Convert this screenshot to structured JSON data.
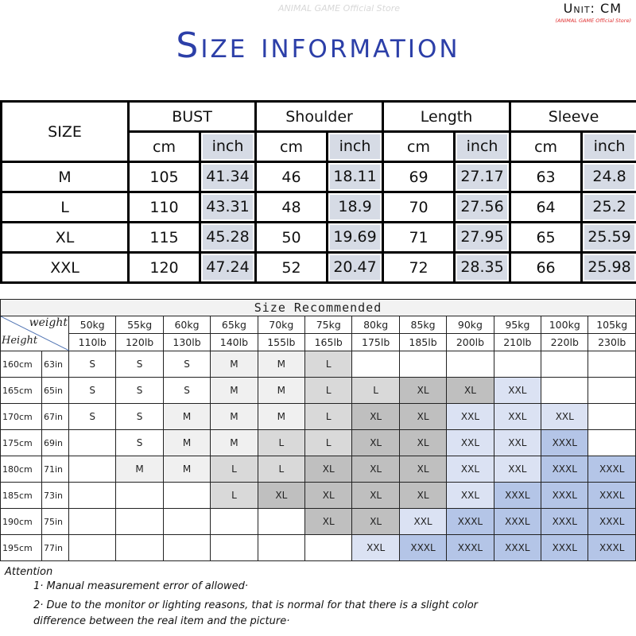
{
  "header": {
    "title": "Size information",
    "unit": "Unit: CM",
    "store": "(ANIMAL GAME Official Store)",
    "watermark": "ANIMAL GAME Official Store"
  },
  "size_table": {
    "size_label": "SIZE",
    "groups": [
      "BUST",
      "Shoulder",
      "Length",
      "Sleeve"
    ],
    "units": [
      "cm",
      "inch"
    ],
    "rows": [
      {
        "size": "M",
        "values": [
          "105",
          "41.34",
          "46",
          "18.11",
          "69",
          "27.17",
          "63",
          "24.8"
        ]
      },
      {
        "size": "L",
        "values": [
          "110",
          "43.31",
          "48",
          "18.9",
          "70",
          "27.56",
          "64",
          "25.2"
        ]
      },
      {
        "size": "XL",
        "values": [
          "115",
          "45.28",
          "50",
          "19.69",
          "71",
          "27.95",
          "65",
          "25.59"
        ]
      },
      {
        "size": "XXL",
        "values": [
          "120",
          "47.24",
          "52",
          "20.47",
          "72",
          "28.35",
          "66",
          "25.98"
        ]
      }
    ]
  },
  "recommend": {
    "title": "Size Recommended",
    "weight_label": "weight",
    "height_label": "Height",
    "kg": [
      "50kg",
      "55kg",
      "60kg",
      "65kg",
      "70kg",
      "75kg",
      "80kg",
      "85kg",
      "90kg",
      "95kg",
      "100kg",
      "105kg"
    ],
    "lb": [
      "110lb",
      "120lb",
      "130lb",
      "140lb",
      "155lb",
      "165lb",
      "175lb",
      "185lb",
      "200lb",
      "210lb",
      "220lb",
      "230lb"
    ],
    "size_colors": {
      "S": "#ffffff",
      "M": "#f0f0f0",
      "L": "#d9d9d9",
      "XL": "#bfbfbf",
      "XXL": "#dbe2f3",
      "XXXL": "#b4c5e7"
    },
    "rows": [
      {
        "cm": "160cm",
        "in": "63in",
        "sizes": [
          "S",
          "S",
          "S",
          "M",
          "M",
          "L",
          "",
          "",
          "",
          "",
          "",
          ""
        ]
      },
      {
        "cm": "165cm",
        "in": "65in",
        "sizes": [
          "S",
          "S",
          "S",
          "M",
          "M",
          "L",
          "L",
          "XL",
          "XL",
          "XXL",
          "",
          ""
        ]
      },
      {
        "cm": "170cm",
        "in": "67in",
        "sizes": [
          "S",
          "S",
          "M",
          "M",
          "M",
          "L",
          "XL",
          "XL",
          "XXL",
          "XXL",
          "XXL",
          ""
        ]
      },
      {
        "cm": "175cm",
        "in": "69in",
        "sizes": [
          "",
          "S",
          "M",
          "M",
          "L",
          "L",
          "XL",
          "XL",
          "XXL",
          "XXL",
          "XXXL",
          ""
        ]
      },
      {
        "cm": "180cm",
        "in": "71in",
        "sizes": [
          "",
          "M",
          "M",
          "L",
          "L",
          "XL",
          "XL",
          "XL",
          "XXL",
          "XXL",
          "XXXL",
          "XXXL"
        ]
      },
      {
        "cm": "185cm",
        "in": "73in",
        "sizes": [
          "",
          "",
          "",
          "L",
          "XL",
          "XL",
          "XL",
          "XL",
          "XXL",
          "XXXL",
          "XXXL",
          "XXXL"
        ]
      },
      {
        "cm": "190cm",
        "in": "75in",
        "sizes": [
          "",
          "",
          "",
          "",
          "",
          "XL",
          "XL",
          "XXL",
          "XXXL",
          "XXXL",
          "XXXL",
          "XXXL"
        ]
      },
      {
        "cm": "195cm",
        "in": "77in",
        "sizes": [
          "",
          "",
          "",
          "",
          "",
          "",
          "XXL",
          "XXXL",
          "XXXL",
          "XXXL",
          "XXXL",
          "XXXL"
        ]
      }
    ]
  },
  "attention": {
    "heading": "Attention",
    "notes": [
      "1· Manual measurement error of allowed·",
      "2·  Due to the monitor or lighting reasons, that is normal for that there is a slight color",
      "difference between the real item and the picture·"
    ]
  }
}
